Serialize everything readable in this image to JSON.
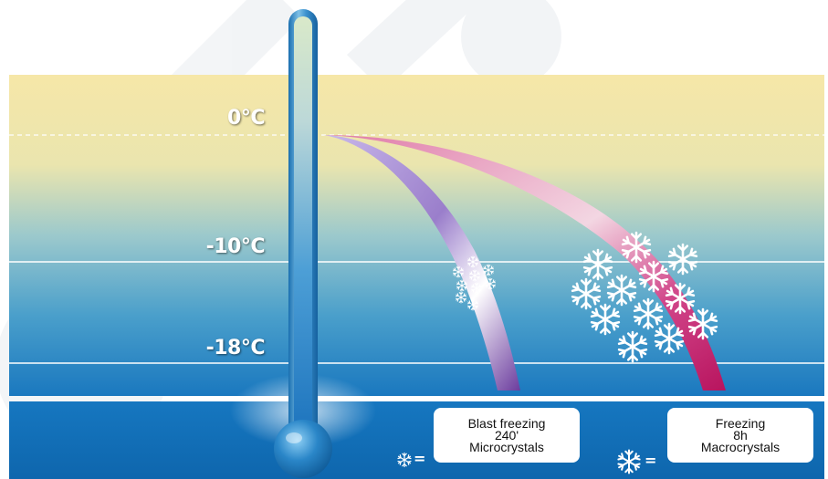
{
  "temperature_scale": {
    "labels": [
      {
        "id": "zero",
        "text": "0°C"
      },
      {
        "id": "minus10",
        "text": "-10°C"
      },
      {
        "id": "minus18",
        "text": "-18°C"
      }
    ]
  },
  "curves": [
    {
      "id": "blast",
      "color_start": "#b59ee0",
      "color_end": "#6a3fa0"
    },
    {
      "id": "normal",
      "color_start": "#e8a0c0",
      "color_end": "#c01a66"
    }
  ],
  "legend": {
    "blast": {
      "line1": "Blast freezing",
      "line2": "240'",
      "line3": "Microcrystals",
      "icon": "small-snowflake-icon"
    },
    "normal": {
      "line1": "Freezing",
      "line2": "8h",
      "line3": "Macrocrystals",
      "icon": "large-snowflake-icon"
    },
    "equals": "="
  },
  "colors": {
    "warm_top": "#f5e6a6",
    "cold_bottom": "#1a79c0",
    "floor": "#0f6bb4",
    "thermometer": "#2a86c8"
  }
}
